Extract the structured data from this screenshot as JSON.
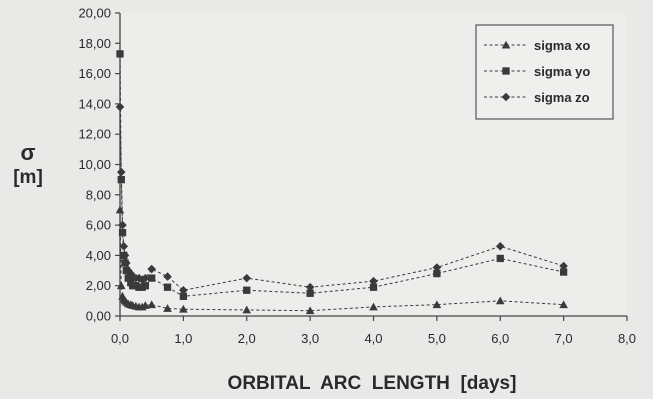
{
  "chart_data": {
    "type": "scatter",
    "title": "",
    "ylabel_symbol": "σ",
    "ylabel_unit": "[m]",
    "xlabel": "ORBITAL  ARC  LENGTH  [days]",
    "xlim": [
      0,
      8
    ],
    "ylim": [
      0,
      20
    ],
    "x_ticks": [
      "0,0",
      "1,0",
      "2,0",
      "3,0",
      "4,0",
      "5,0",
      "6,0",
      "7,0",
      "8,0"
    ],
    "y_ticks": [
      "0,00",
      "2,00",
      "4,00",
      "6,00",
      "8,00",
      "10,00",
      "12,00",
      "14,00",
      "16,00",
      "18,00",
      "20,00"
    ],
    "legend_position": "top-right",
    "grid": false,
    "series": [
      {
        "name": "sigma xo",
        "marker": "triangle",
        "color": "#3a3a3a",
        "x": [
          0.0,
          0.02,
          0.04,
          0.06,
          0.08,
          0.1,
          0.13,
          0.17,
          0.2,
          0.25,
          0.3,
          0.35,
          0.4,
          0.5,
          0.75,
          1.0,
          2.0,
          3.0,
          4.0,
          5.0,
          6.0,
          7.0
        ],
        "y": [
          7.0,
          2.0,
          1.3,
          1.1,
          1.0,
          0.9,
          0.8,
          0.75,
          0.7,
          0.65,
          0.6,
          0.6,
          0.7,
          0.75,
          0.5,
          0.45,
          0.4,
          0.35,
          0.6,
          0.75,
          1.0,
          0.75
        ]
      },
      {
        "name": "sigma yo",
        "marker": "square",
        "color": "#3a3a3a",
        "x": [
          0.0,
          0.02,
          0.04,
          0.06,
          0.08,
          0.1,
          0.13,
          0.17,
          0.2,
          0.25,
          0.3,
          0.35,
          0.4,
          0.5,
          0.75,
          1.0,
          2.0,
          3.0,
          4.0,
          5.0,
          6.0,
          7.0
        ],
        "y": [
          17.3,
          9.0,
          5.5,
          4.0,
          3.5,
          3.0,
          2.5,
          2.2,
          2.0,
          2.0,
          1.9,
          1.9,
          2.0,
          2.5,
          1.9,
          1.3,
          1.7,
          1.5,
          1.9,
          2.8,
          3.8,
          2.9
        ]
      },
      {
        "name": "sigma zo",
        "marker": "diamond",
        "color": "#3a3a3a",
        "x": [
          0.0,
          0.02,
          0.04,
          0.06,
          0.08,
          0.1,
          0.13,
          0.17,
          0.2,
          0.25,
          0.3,
          0.35,
          0.4,
          0.5,
          0.75,
          1.0,
          2.0,
          3.0,
          4.0,
          5.0,
          6.0,
          7.0
        ],
        "y": [
          13.8,
          9.5,
          6.0,
          4.6,
          4.0,
          3.5,
          3.0,
          2.8,
          2.6,
          2.5,
          2.5,
          2.4,
          2.5,
          3.1,
          2.6,
          1.7,
          2.5,
          1.9,
          2.3,
          3.2,
          4.6,
          3.3
        ]
      }
    ]
  }
}
